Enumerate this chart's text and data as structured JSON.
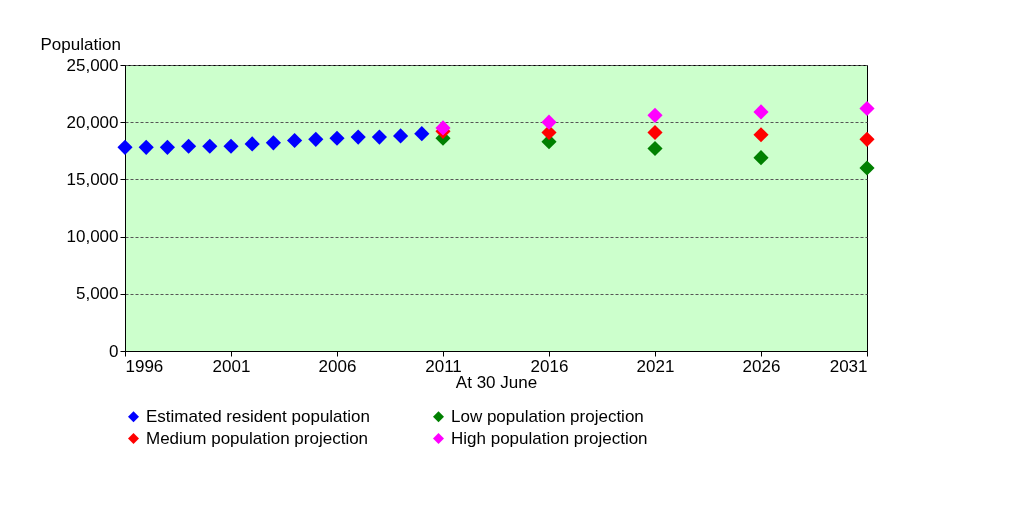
{
  "chart_data": {
    "type": "scatter",
    "ylabel": "Population",
    "xlabel": "At 30 June",
    "marker": "diamond",
    "grid": "y",
    "legend": "bottom",
    "xlim": [
      1996,
      2031
    ],
    "xticks": [
      1996,
      2001,
      2006,
      2011,
      2016,
      2021,
      2026,
      2031
    ],
    "ylim": [
      0,
      25000
    ],
    "yticks": [
      0,
      {
        "value": 5000,
        "label": "5,000"
      },
      {
        "value": 10000,
        "label": "10,000"
      },
      {
        "value": 15000,
        "label": "15,000"
      },
      {
        "value": 20000,
        "label": "20,000"
      },
      {
        "value": 25000,
        "label": "25,000"
      }
    ],
    "series": [
      {
        "name": "Estimated resident population",
        "color": "#0000ff",
        "x": [
          1996,
          1997,
          1998,
          1999,
          2000,
          2001,
          2002,
          2003,
          2004,
          2005,
          2006,
          2007,
          2008,
          2009,
          2010
        ],
        "values": [
          17800,
          17800,
          17800,
          17900,
          17900,
          17900,
          18100,
          18200,
          18400,
          18500,
          18600,
          18700,
          18700,
          18800,
          19000
        ]
      },
      {
        "name": "Low population projection",
        "color": "#008000",
        "x": [
          2011,
          2016,
          2021,
          2026,
          2031
        ],
        "values": [
          18600,
          18300,
          17700,
          16900,
          16000
        ]
      },
      {
        "name": "Medium population projection",
        "color": "#ff0000",
        "x": [
          2011,
          2016,
          2021,
          2026,
          2031
        ],
        "values": [
          19200,
          19100,
          19100,
          18900,
          18500
        ]
      },
      {
        "name": "High population projection",
        "color": "#ff00ff",
        "x": [
          2011,
          2016,
          2021,
          2026,
          2031
        ],
        "values": [
          19500,
          20000,
          20600,
          20900,
          21200
        ]
      }
    ]
  }
}
